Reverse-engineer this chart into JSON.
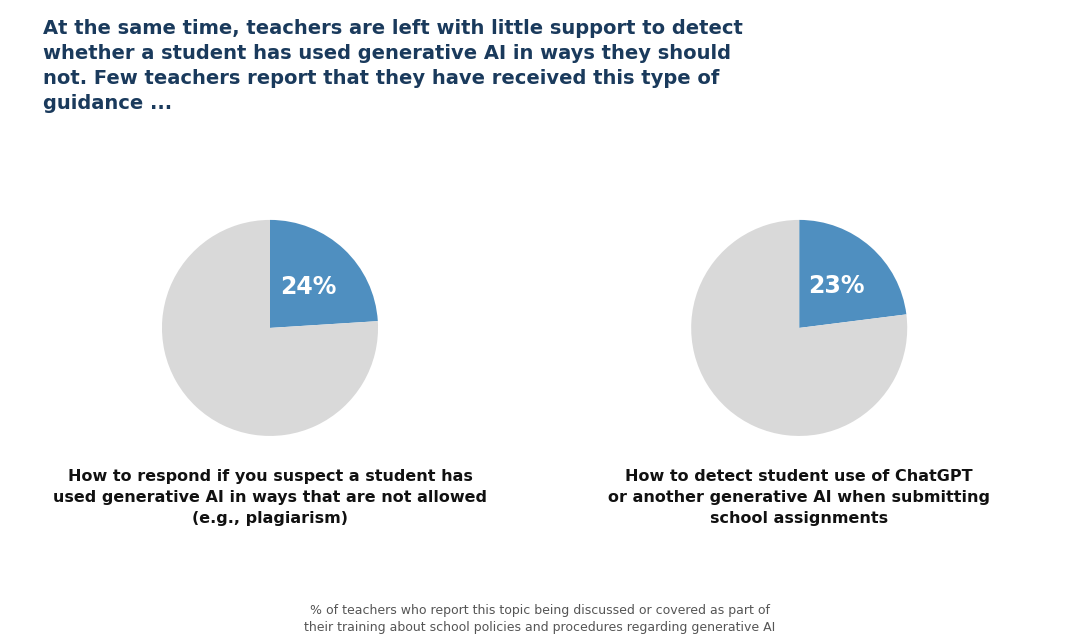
{
  "title": "At the same time, teachers are left with little support to detect\nwhether a student has used generative AI in ways they should\nnot. Few teachers report that they have received this type of\nguidance ...",
  "title_color": "#1a3a5c",
  "background_color": "#ffffff",
  "pie1": {
    "values": [
      24,
      76
    ],
    "colors": [
      "#4f8fc0",
      "#d9d9d9"
    ],
    "label_text": "24%",
    "caption": "How to respond if you suspect a student has\nused generative AI in ways that are not allowed\n(e.g., plagiarism)"
  },
  "pie2": {
    "values": [
      23,
      77
    ],
    "colors": [
      "#4f8fc0",
      "#d9d9d9"
    ],
    "label_text": "23%",
    "caption": "How to detect student use of ChatGPT\nor another generative AI when submitting\nschool assignments"
  },
  "footnote": "% of teachers who report this topic being discussed or covered as part of\ntheir training about school policies and procedures regarding generative AI",
  "title_fontsize": 14,
  "caption_fontsize": 11.5,
  "footnote_fontsize": 9
}
